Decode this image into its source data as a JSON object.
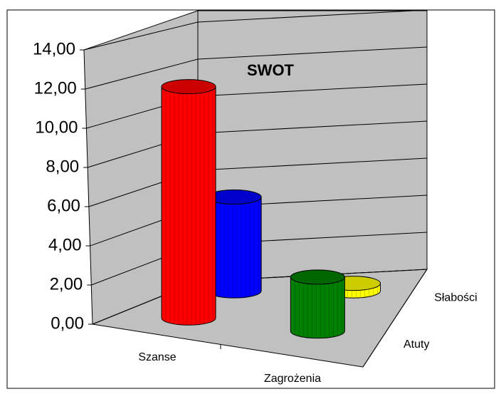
{
  "chart_data": {
    "type": "bar3d",
    "title": "SWOT",
    "categories": [
      "Szanse",
      "Zagrożenia"
    ],
    "series": [
      {
        "name": "Atuty",
        "color": "#ff0000",
        "values": [
          12,
          2.8
        ]
      },
      {
        "name": "Słabości",
        "color": "#0000ff",
        "values": [
          5,
          0.4
        ]
      }
    ],
    "point_colors": [
      [
        "#ff0000",
        "#008000"
      ],
      [
        "#0000ff",
        "#ffff00"
      ]
    ],
    "ylim": [
      0,
      14
    ],
    "yticks": [
      {
        "value": 0,
        "label": "0,00"
      },
      {
        "value": 2,
        "label": "2,00"
      },
      {
        "value": 4,
        "label": "4,00"
      },
      {
        "value": 6,
        "label": "6,00"
      },
      {
        "value": 8,
        "label": "8,00"
      },
      {
        "value": 10,
        "label": "10,00"
      },
      {
        "value": 12,
        "label": "12,00"
      },
      {
        "value": 14,
        "label": "14,00"
      }
    ],
    "grid": true
  }
}
